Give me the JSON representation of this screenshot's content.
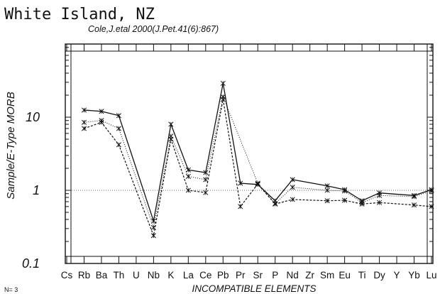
{
  "chart_data": {
    "type": "line",
    "title": "White Island, NZ",
    "subtitle": "Cole,J.etal 2000(J.Pet.41(6):867)",
    "xlabel": "INCOMPATIBLE ELEMENTS",
    "ylabel": "Sample/E-Type MORB",
    "y_scale": "log",
    "ylim": [
      0.1,
      100
    ],
    "y_ticks": [
      {
        "value": 0.1,
        "label": "0.1"
      },
      {
        "value": 1,
        "label": "1"
      },
      {
        "value": 10,
        "label": "10"
      }
    ],
    "reference_line": 1,
    "categories": [
      "Cs",
      "Rb",
      "Ba",
      "Th",
      "U",
      "Nb",
      "K",
      "La",
      "Ce",
      "Pb",
      "Pr",
      "Sr",
      "P",
      "Nd",
      "Zr",
      "Sm",
      "Eu",
      "Ti",
      "Dy",
      "Y",
      "Yb",
      "Lu"
    ],
    "series": [
      {
        "style": "solid",
        "values": [
          null,
          12.5,
          12.0,
          10.5,
          null,
          0.38,
          8.0,
          1.9,
          1.75,
          29.0,
          1.25,
          1.2,
          0.72,
          1.4,
          null,
          1.15,
          1.02,
          0.72,
          0.92,
          null,
          0.85,
          1.02
        ]
      },
      {
        "style": "dotted",
        "values": [
          null,
          8.5,
          9.0,
          7.0,
          null,
          0.31,
          5.5,
          1.55,
          1.4,
          19.0,
          null,
          1.25,
          0.66,
          1.1,
          null,
          1.0,
          0.98,
          0.68,
          0.85,
          null,
          0.82,
          0.98
        ]
      },
      {
        "style": "dashed",
        "values": [
          null,
          7.0,
          8.5,
          4.2,
          null,
          0.24,
          5.0,
          1.0,
          0.93,
          17.5,
          0.6,
          1.22,
          0.65,
          0.75,
          null,
          0.72,
          0.73,
          0.65,
          0.68,
          null,
          0.63,
          0.6
        ]
      }
    ],
    "grid": false,
    "legend": "none"
  },
  "footer": {
    "n_label": "N= 3"
  }
}
